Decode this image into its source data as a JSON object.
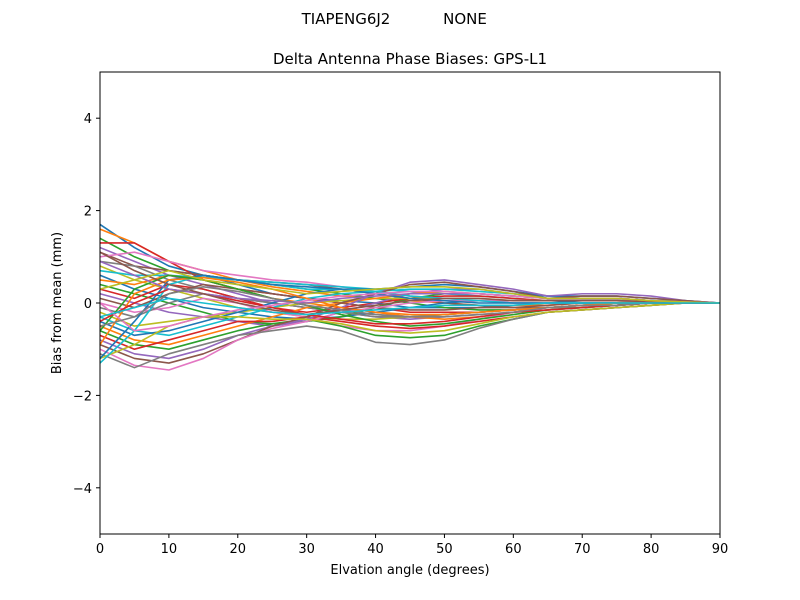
{
  "figure": {
    "suptitle_left": "TIAPENG6J2",
    "suptitle_right": "NONE"
  },
  "chart_data": {
    "type": "line",
    "title": "Delta Antenna Phase Biases: GPS-L1",
    "xlabel": "Elvation angle (degrees)",
    "ylabel": "Bias from mean (mm)",
    "xlim": [
      0,
      90
    ],
    "ylim": [
      -5,
      5
    ],
    "xticks": [
      0,
      10,
      20,
      30,
      40,
      50,
      60,
      70,
      80,
      90
    ],
    "xtick_labels": [
      "0",
      "10",
      "20",
      "30",
      "40",
      "50",
      "60",
      "70",
      "80",
      "90"
    ],
    "yticks": [
      -4,
      -2,
      0,
      2,
      4
    ],
    "ytick_labels": [
      "−4",
      "−2",
      "0",
      "2",
      "4"
    ],
    "grid": false,
    "x": [
      0,
      5,
      10,
      15,
      20,
      25,
      30,
      35,
      40,
      45,
      50,
      55,
      60,
      65,
      70,
      75,
      80,
      85,
      90
    ],
    "colors": [
      "#1f77b4",
      "#ff7f0e",
      "#2ca02c",
      "#d62728",
      "#9467bd",
      "#8c564b",
      "#e377c2",
      "#7f7f7f",
      "#bcbd22",
      "#17becf"
    ],
    "series": [
      {
        "values": [
          1.7,
          1.2,
          0.8,
          0.6,
          0.4,
          0.2,
          0.1,
          0.05,
          0.0,
          -0.1,
          -0.1,
          -0.1,
          -0.05,
          0.0,
          0.05,
          0.05,
          0.05,
          0.03,
          0
        ]
      },
      {
        "values": [
          1.6,
          1.3,
          0.9,
          0.7,
          0.5,
          0.35,
          0.25,
          0.15,
          0.1,
          0.05,
          0.0,
          -0.05,
          -0.05,
          -0.05,
          0.0,
          0.0,
          0.0,
          0.0,
          0
        ]
      },
      {
        "values": [
          1.4,
          1.0,
          0.7,
          0.6,
          0.5,
          0.4,
          0.3,
          0.2,
          0.1,
          0.0,
          -0.1,
          -0.15,
          -0.15,
          -0.1,
          -0.05,
          0.0,
          0.0,
          0.0,
          0
        ]
      },
      {
        "values": [
          1.3,
          1.3,
          0.9,
          0.5,
          0.3,
          0.2,
          0.1,
          0.0,
          -0.1,
          -0.2,
          -0.2,
          -0.2,
          -0.15,
          -0.1,
          -0.05,
          -0.05,
          0.0,
          0.0,
          0
        ]
      },
      {
        "values": [
          1.2,
          0.9,
          0.6,
          0.4,
          0.2,
          0.0,
          -0.1,
          -0.2,
          -0.3,
          -0.35,
          -0.3,
          -0.25,
          -0.2,
          -0.15,
          -0.1,
          -0.05,
          0.0,
          0.0,
          0
        ]
      },
      {
        "values": [
          1.1,
          0.8,
          0.7,
          0.6,
          0.5,
          0.45,
          0.4,
          0.3,
          0.2,
          0.1,
          0.0,
          -0.05,
          -0.1,
          -0.1,
          -0.05,
          -0.05,
          0.0,
          0.0,
          0
        ]
      },
      {
        "values": [
          1.0,
          1.1,
          0.9,
          0.7,
          0.6,
          0.5,
          0.45,
          0.35,
          0.25,
          0.15,
          0.1,
          0.05,
          0.0,
          0.0,
          0.0,
          0.0,
          0.0,
          0.0,
          0
        ]
      },
      {
        "values": [
          0.9,
          0.8,
          0.5,
          0.3,
          0.1,
          0.0,
          -0.1,
          -0.2,
          -0.25,
          -0.3,
          -0.25,
          -0.2,
          -0.15,
          -0.1,
          -0.05,
          0.0,
          0.0,
          0.0,
          0
        ]
      },
      {
        "values": [
          0.8,
          0.5,
          0.3,
          0.1,
          -0.1,
          -0.2,
          -0.3,
          -0.35,
          -0.35,
          -0.3,
          -0.25,
          -0.2,
          -0.15,
          -0.1,
          -0.05,
          0.0,
          0.0,
          0.0,
          0
        ]
      },
      {
        "values": [
          0.7,
          0.6,
          0.6,
          0.55,
          0.5,
          0.45,
          0.4,
          0.35,
          0.3,
          0.25,
          0.2,
          0.15,
          0.1,
          0.05,
          0.05,
          0.05,
          0.05,
          0.03,
          0
        ]
      },
      {
        "values": [
          0.6,
          0.3,
          0.1,
          -0.1,
          -0.2,
          -0.3,
          -0.35,
          -0.3,
          -0.2,
          -0.1,
          0.0,
          0.05,
          0.05,
          0.05,
          0.05,
          0.05,
          0.03,
          0.0,
          0
        ]
      },
      {
        "values": [
          0.5,
          0.4,
          0.6,
          0.5,
          0.3,
          0.1,
          0.0,
          -0.1,
          -0.2,
          -0.3,
          -0.35,
          -0.3,
          -0.2,
          -0.1,
          -0.05,
          0.0,
          0.0,
          0.0,
          0
        ]
      },
      {
        "values": [
          0.4,
          0.2,
          0.0,
          -0.2,
          -0.4,
          -0.45,
          -0.4,
          -0.3,
          -0.1,
          0.1,
          0.2,
          0.2,
          0.15,
          0.1,
          0.1,
          0.1,
          0.05,
          0.02,
          0
        ]
      },
      {
        "values": [
          0.3,
          0.1,
          0.4,
          0.3,
          0.1,
          -0.1,
          -0.2,
          -0.1,
          0.0,
          0.1,
          0.15,
          0.15,
          0.1,
          0.05,
          0.05,
          0.05,
          0.05,
          0.02,
          0
        ]
      },
      {
        "values": [
          0.2,
          0.0,
          -0.2,
          -0.3,
          -0.4,
          -0.5,
          -0.4,
          -0.2,
          0.0,
          0.2,
          0.3,
          0.3,
          0.2,
          0.1,
          0.1,
          0.1,
          0.05,
          0.02,
          0
        ]
      },
      {
        "values": [
          0.1,
          -0.1,
          0.2,
          0.4,
          0.3,
          0.2,
          0.1,
          0.0,
          -0.1,
          -0.15,
          -0.15,
          -0.1,
          -0.1,
          -0.05,
          0.0,
          0.0,
          0.0,
          0.0,
          0
        ]
      },
      {
        "values": [
          0.0,
          -0.2,
          -0.1,
          0.1,
          0.0,
          -0.2,
          -0.3,
          -0.5,
          -0.6,
          -0.6,
          -0.5,
          -0.35,
          -0.2,
          -0.1,
          -0.05,
          -0.05,
          0.0,
          0.0,
          0
        ]
      },
      {
        "values": [
          -0.1,
          -0.3,
          0.0,
          0.2,
          0.1,
          0.0,
          -0.1,
          -0.2,
          -0.3,
          -0.3,
          -0.25,
          -0.2,
          -0.15,
          -0.1,
          -0.1,
          -0.05,
          0.0,
          0.0,
          0
        ]
      },
      {
        "values": [
          -0.2,
          -0.5,
          -0.4,
          -0.3,
          -0.2,
          -0.1,
          0.0,
          0.05,
          0.1,
          0.1,
          0.1,
          0.1,
          0.05,
          0.05,
          0.05,
          0.05,
          0.03,
          0.0,
          0
        ]
      },
      {
        "values": [
          -0.3,
          -0.6,
          -0.7,
          -0.5,
          -0.3,
          -0.1,
          0.1,
          0.2,
          0.25,
          0.3,
          0.3,
          0.25,
          0.2,
          0.15,
          0.1,
          0.1,
          0.05,
          0.02,
          0
        ]
      },
      {
        "values": [
          -0.4,
          -0.7,
          -0.6,
          -0.4,
          -0.2,
          0.0,
          0.2,
          0.3,
          0.3,
          0.35,
          0.4,
          0.35,
          0.25,
          0.15,
          0.15,
          0.15,
          0.1,
          0.05,
          0
        ]
      },
      {
        "values": [
          -0.5,
          -0.8,
          -0.9,
          -0.7,
          -0.5,
          -0.3,
          -0.1,
          0.0,
          0.1,
          0.2,
          0.25,
          0.2,
          0.15,
          0.1,
          0.1,
          0.1,
          0.05,
          0.02,
          0
        ]
      },
      {
        "values": [
          -0.6,
          -0.9,
          -1.0,
          -0.8,
          -0.6,
          -0.45,
          -0.35,
          -0.5,
          -0.7,
          -0.75,
          -0.7,
          -0.5,
          -0.35,
          -0.2,
          -0.15,
          -0.1,
          -0.05,
          0.0,
          0
        ]
      },
      {
        "values": [
          -0.7,
          -1.0,
          -0.8,
          -0.6,
          -0.4,
          -0.4,
          -0.3,
          -0.4,
          -0.5,
          -0.55,
          -0.5,
          -0.4,
          -0.3,
          -0.2,
          -0.15,
          -0.1,
          -0.05,
          0.0,
          0
        ]
      },
      {
        "values": [
          -0.8,
          -1.1,
          -1.2,
          -1.0,
          -0.7,
          -0.5,
          -0.35,
          -0.1,
          0.2,
          0.45,
          0.5,
          0.4,
          0.3,
          0.15,
          0.2,
          0.2,
          0.15,
          0.05,
          0
        ]
      },
      {
        "values": [
          -0.9,
          -1.2,
          -1.3,
          -1.1,
          -0.8,
          -0.5,
          -0.3,
          0.0,
          0.2,
          0.4,
          0.45,
          0.35,
          0.25,
          0.1,
          0.15,
          0.15,
          0.1,
          0.05,
          0
        ]
      },
      {
        "values": [
          -1.0,
          -1.35,
          -1.45,
          -1.2,
          -0.8,
          -0.55,
          -0.4,
          -0.2,
          -0.1,
          0.0,
          0.05,
          0.05,
          0.05,
          0.05,
          0.05,
          0.05,
          0.03,
          0.0,
          0
        ]
      },
      {
        "values": [
          -1.1,
          -1.4,
          -1.1,
          -0.9,
          -0.7,
          -0.6,
          -0.5,
          -0.6,
          -0.85,
          -0.9,
          -0.8,
          -0.55,
          -0.35,
          -0.2,
          -0.15,
          -0.1,
          -0.05,
          0.0,
          0
        ]
      },
      {
        "values": [
          -1.2,
          -0.9,
          -0.5,
          -0.3,
          -0.3,
          -0.35,
          -0.35,
          -0.45,
          -0.6,
          -0.65,
          -0.6,
          -0.45,
          -0.3,
          -0.2,
          -0.15,
          -0.1,
          -0.05,
          0.0,
          0
        ]
      },
      {
        "values": [
          -1.3,
          -0.6,
          0.4,
          0.6,
          0.5,
          0.4,
          0.3,
          0.3,
          0.25,
          0.15,
          0.1,
          0.05,
          0.0,
          0.0,
          0.0,
          0.0,
          0.0,
          0.0,
          0
        ]
      },
      {
        "values": [
          -1.2,
          -0.4,
          0.5,
          0.6,
          0.5,
          0.4,
          0.35,
          0.3,
          0.2,
          0.1,
          0.05,
          0.0,
          0.0,
          0.0,
          0.0,
          0.0,
          0.0,
          0.0,
          0
        ]
      },
      {
        "values": [
          -0.9,
          0.2,
          0.5,
          0.55,
          0.45,
          0.3,
          0.1,
          -0.1,
          -0.2,
          -0.25,
          -0.25,
          -0.2,
          -0.15,
          -0.1,
          -0.05,
          0.0,
          0.0,
          0.0,
          0
        ]
      },
      {
        "values": [
          -0.6,
          0.3,
          0.6,
          0.5,
          0.3,
          0.1,
          -0.05,
          -0.25,
          -0.4,
          -0.5,
          -0.45,
          -0.35,
          -0.25,
          -0.15,
          -0.1,
          -0.05,
          0.0,
          0.0,
          0
        ]
      },
      {
        "values": [
          -0.4,
          0.0,
          0.3,
          0.2,
          0.05,
          -0.1,
          -0.25,
          -0.35,
          -0.45,
          -0.45,
          -0.4,
          -0.3,
          -0.2,
          -0.15,
          -0.1,
          -0.05,
          0.0,
          0.0,
          0
        ]
      },
      {
        "values": [
          0.9,
          0.6,
          0.3,
          0.2,
          0.1,
          0.05,
          0.0,
          0.1,
          0.15,
          0.2,
          0.2,
          0.2,
          0.15,
          0.1,
          0.1,
          0.1,
          0.05,
          0.02,
          0
        ]
      },
      {
        "values": [
          1.1,
          0.7,
          0.4,
          0.2,
          0.0,
          -0.15,
          -0.25,
          -0.15,
          -0.05,
          0.05,
          0.1,
          0.1,
          0.05,
          0.05,
          0.05,
          0.05,
          0.03,
          0.0,
          0
        ]
      },
      {
        "values": [
          0.0,
          -0.6,
          -0.5,
          -0.3,
          -0.15,
          -0.05,
          0.05,
          0.15,
          0.2,
          0.25,
          0.25,
          0.2,
          0.15,
          0.1,
          0.1,
          0.1,
          0.05,
          0.02,
          0
        ]
      },
      {
        "values": [
          -0.5,
          -0.3,
          0.2,
          0.35,
          0.25,
          0.1,
          -0.05,
          -0.15,
          -0.25,
          -0.3,
          -0.3,
          -0.25,
          -0.2,
          -0.1,
          -0.05,
          -0.05,
          0.0,
          0.0,
          0
        ]
      },
      {
        "values": [
          0.3,
          0.5,
          0.7,
          0.5,
          0.4,
          0.3,
          0.2,
          0.25,
          0.3,
          0.35,
          0.35,
          0.3,
          0.2,
          0.1,
          0.1,
          0.1,
          0.05,
          0.02,
          0
        ]
      },
      {
        "values": [
          -0.3,
          -0.1,
          0.1,
          0.0,
          -0.1,
          -0.2,
          -0.25,
          -0.2,
          -0.15,
          -0.1,
          -0.05,
          -0.05,
          -0.05,
          0.0,
          0.0,
          0.0,
          0.0,
          0.0,
          0
        ]
      }
    ]
  }
}
